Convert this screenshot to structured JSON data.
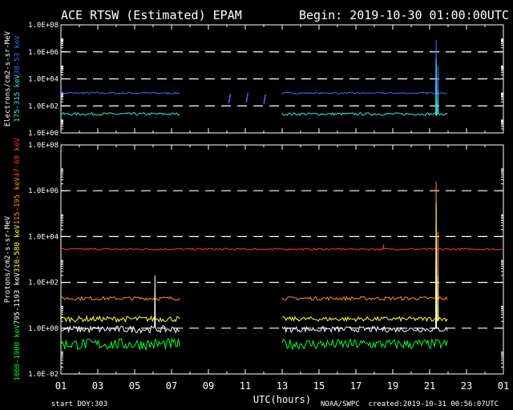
{
  "header": {
    "title": "ACE RTSW (Estimated) EPAM",
    "begin": "Begin: 2019-10-30 01:00:00UTC"
  },
  "footer": {
    "start_doy_label": "start DOY:",
    "start_doy": "303",
    "source": "NOAA/SWPC",
    "created": "created:2019-10-31 00:56:07UTC"
  },
  "chart_data": [
    {
      "type": "line",
      "panel": "electrons",
      "ylabel": "Electrons/cm2-s-sr-MeV",
      "yscale": "log",
      "ylim_exponent": [
        0,
        8
      ],
      "y_ticks": [
        "1.0E+00",
        "1.0E+02",
        "1.0E+04",
        "1.0E+06",
        "1.0E+08"
      ],
      "dashed_grid_at": [
        2,
        4,
        6
      ],
      "series": [
        {
          "name": "38-53 keV",
          "color": "#3a6cff",
          "segments": [
            {
              "start": 1.0,
              "end": 7.5,
              "base": 2.95,
              "noise": 0.08
            },
            {
              "start": 13.0,
              "end": 22.0,
              "base": 2.95,
              "noise": 0.06,
              "spikes": [
                [
                  21.35,
                  6.9
                ],
                [
                  21.45,
                  5.0
                ]
              ]
            }
          ],
          "sparse": [
            [
              10.15,
              2.55
            ],
            [
              11.1,
              2.6
            ],
            [
              12.05,
              2.5
            ]
          ]
        },
        {
          "name": "175-315 keV",
          "color": "#40e0e0",
          "segments": [
            {
              "start": 1.0,
              "end": 7.5,
              "base": 1.4,
              "noise": 0.1
            },
            {
              "start": 13.0,
              "end": 22.0,
              "base": 1.4,
              "noise": 0.1,
              "spikes": [
                [
                  21.35,
                  5.5
                ],
                [
                  21.45,
                  3.0
                ]
              ]
            }
          ]
        }
      ]
    },
    {
      "type": "line",
      "panel": "protons",
      "ylabel": "Protons/cm2-s-sr-MeV",
      "yscale": "log",
      "ylim_exponent": [
        -2,
        8
      ],
      "y_ticks": [
        "1.0E-02",
        "1.0E+00",
        "1.0E+02",
        "1.0E+04",
        "1.0E+06",
        "1.0E+08"
      ],
      "dashed_grid_at": [
        0,
        2,
        4,
        6
      ],
      "series": [
        {
          "name": "47-68 keV",
          "color": "#ff3a1a",
          "segments": [
            {
              "start": 1.0,
              "end": 25.0,
              "base": 3.45,
              "noise": 0.04,
              "spikes": [
                [
                  18.5,
                  3.65
                ]
              ]
            }
          ]
        },
        {
          "name": "115-195 keV",
          "color": "#ff8c28",
          "segments": [
            {
              "start": 1.0,
              "end": 7.5,
              "base": 1.3,
              "noise": 0.08
            },
            {
              "start": 13.0,
              "end": 22.0,
              "base": 1.3,
              "noise": 0.08,
              "spikes": [
                [
                  21.35,
                  6.4
                ],
                [
                  21.45,
                  4.2
                ]
              ]
            }
          ]
        },
        {
          "name": "310-580 keV",
          "color": "#ffff3a",
          "segments": [
            {
              "start": 1.0,
              "end": 7.5,
              "base": 0.4,
              "noise": 0.12
            },
            {
              "start": 13.0,
              "end": 22.0,
              "base": 0.4,
              "noise": 0.1,
              "spikes": [
                [
                  21.35,
                  5.5
                ],
                [
                  21.45,
                  2.3
                ]
              ]
            }
          ]
        },
        {
          "name": "795-1193 keV",
          "color": "#ffffff",
          "segments": [
            {
              "start": 1.0,
              "end": 7.5,
              "base": -0.05,
              "noise": 0.15,
              "spikes": [
                [
                  6.1,
                  2.3
                ]
              ]
            },
            {
              "start": 13.0,
              "end": 22.0,
              "base": -0.05,
              "noise": 0.12,
              "spikes": [
                [
                  21.35,
                  4.0
                ]
              ]
            }
          ]
        },
        {
          "name": "1060-1900 keV",
          "color": "#00ff30",
          "segments": [
            {
              "start": 1.0,
              "end": 7.5,
              "base": -0.7,
              "noise": 0.25
            },
            {
              "start": 13.0,
              "end": 22.0,
              "base": -0.7,
              "noise": 0.22
            }
          ]
        }
      ]
    }
  ],
  "x_axis": {
    "label": "UTC(hours)",
    "range_hours": [
      1,
      25
    ],
    "ticks": [
      "01",
      "03",
      "05",
      "07",
      "09",
      "11",
      "13",
      "15",
      "17",
      "19",
      "21",
      "23",
      "01"
    ]
  }
}
